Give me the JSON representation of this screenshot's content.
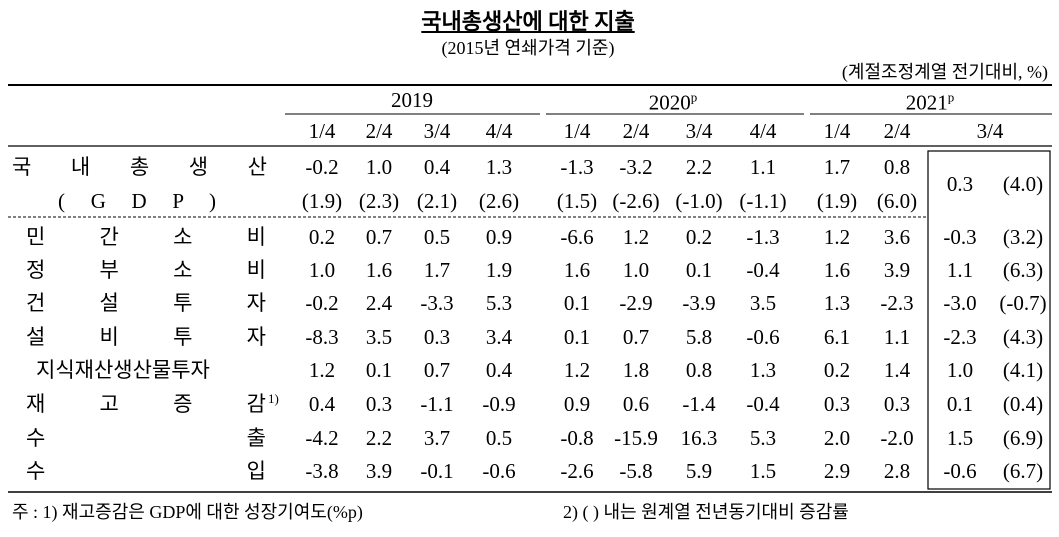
{
  "title": "국내총생산에 대한 지출",
  "subtitle": "(2015년 연쇄가격 기준)",
  "unit": "(계절조정계열 전기대비, %)",
  "years": [
    {
      "year": "2019"
    },
    {
      "year": "2020",
      "sup": "p"
    },
    {
      "year": "2021",
      "sup": "p"
    }
  ],
  "quarters": [
    "1/4",
    "2/4",
    "3/4",
    "4/4",
    "1/4",
    "2/4",
    "3/4",
    "4/4",
    "1/4",
    "2/4",
    "3/4"
  ],
  "gdp": {
    "label": "국 내 총 생 산",
    "label2": "( G D P )",
    "values": [
      "-0.2",
      "1.0",
      "0.4",
      "1.3",
      "-1.3",
      "-3.2",
      "2.2",
      "1.1",
      "1.7",
      "0.8",
      "0.3"
    ],
    "yoy": [
      "(1.9)",
      "(2.3)",
      "(2.1)",
      "(2.6)",
      "(1.5)",
      "(-2.6)",
      "(-1.0)",
      "(-1.1)",
      "(1.9)",
      "(6.0)",
      "(4.0)"
    ]
  },
  "rows": [
    {
      "label": "민 간 소 비",
      "values": [
        "0.2",
        "0.7",
        "0.5",
        "0.9",
        "-6.6",
        "1.2",
        "0.2",
        "-1.3",
        "1.2",
        "3.6",
        "-0.3"
      ],
      "latest_yoy": "(3.2)"
    },
    {
      "label": "정 부 소 비",
      "values": [
        "1.0",
        "1.6",
        "1.7",
        "1.9",
        "1.6",
        "1.0",
        "0.1",
        "-0.4",
        "1.6",
        "3.9",
        "1.1"
      ],
      "latest_yoy": "(6.3)"
    },
    {
      "label": "건 설 투 자",
      "values": [
        "-0.2",
        "2.4",
        "-3.3",
        "5.3",
        "0.1",
        "-2.9",
        "-3.9",
        "3.5",
        "1.3",
        "-2.3",
        "-3.0"
      ],
      "latest_yoy": "(-0.7)"
    },
    {
      "label": "설 비 투 자",
      "values": [
        "-8.3",
        "3.5",
        "0.3",
        "3.4",
        "0.1",
        "0.7",
        "5.8",
        "-0.6",
        "6.1",
        "1.1",
        "-2.3"
      ],
      "latest_yoy": "(4.3)"
    },
    {
      "label": "지식재산생산물투자",
      "values": [
        "1.2",
        "0.1",
        "0.7",
        "0.4",
        "1.2",
        "1.8",
        "0.8",
        "1.3",
        "0.2",
        "1.4",
        "1.0"
      ],
      "latest_yoy": "(4.1)"
    },
    {
      "label": "재 고 증 감",
      "sup": "1)",
      "values": [
        "0.4",
        "0.3",
        "-1.1",
        "-0.9",
        "0.9",
        "0.6",
        "-1.4",
        "-0.4",
        "0.3",
        "0.3",
        "0.1"
      ],
      "latest_yoy": "(0.4)"
    },
    {
      "label": "수 출",
      "values": [
        "-4.2",
        "2.2",
        "3.7",
        "0.5",
        "-0.8",
        "-15.9",
        "16.3",
        "5.3",
        "2.0",
        "-2.0",
        "1.5"
      ],
      "latest_yoy": "(6.9)"
    },
    {
      "label": "수 입",
      "values": [
        "-3.8",
        "3.9",
        "-0.1",
        "-0.6",
        "-2.6",
        "-5.8",
        "5.9",
        "1.5",
        "2.9",
        "2.8",
        "-0.6"
      ],
      "latest_yoy": "(6.7)"
    }
  ],
  "footnotes": [
    "주 : 1) 재고증감은 GDP에 대한 성장기여도(%p)",
    "2) ( ) 내는 원계열 전년동기대비 증감률"
  ]
}
